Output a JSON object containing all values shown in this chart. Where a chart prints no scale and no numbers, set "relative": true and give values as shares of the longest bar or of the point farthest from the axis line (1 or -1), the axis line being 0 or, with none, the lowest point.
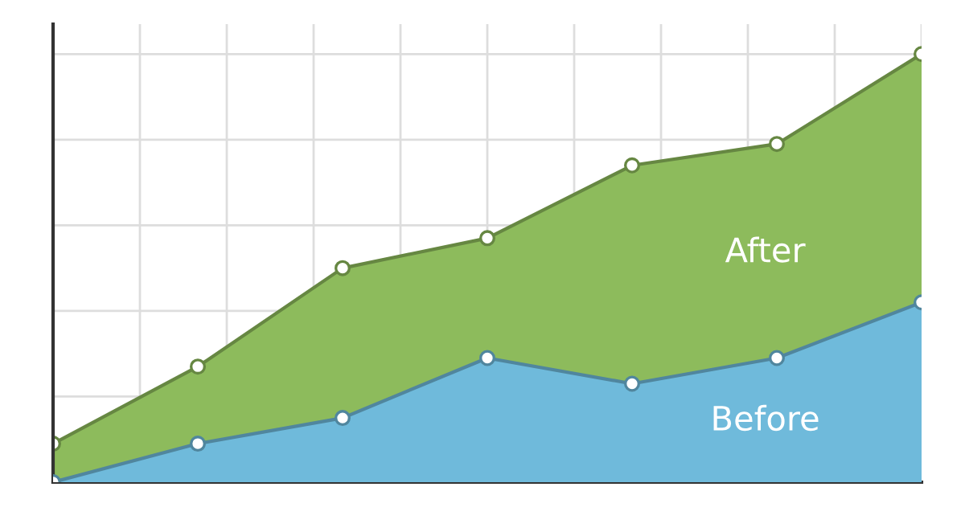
{
  "chart_data": {
    "type": "area",
    "relative": true,
    "grid": true,
    "marker": "circle",
    "tick_labels": false,
    "categories": [
      null,
      null,
      null,
      null,
      null,
      null,
      null
    ],
    "series": [
      {
        "name": "After",
        "color": "#8dbb5c",
        "values": [
          0.09,
          0.27,
          0.5,
          0.57,
          0.74,
          0.79,
          1.0
        ]
      },
      {
        "name": "Before",
        "color": "#6fbadb",
        "values": [
          0,
          0.09,
          0.15,
          0.29,
          0.23,
          0.29,
          0.42
        ]
      }
    ]
  }
}
